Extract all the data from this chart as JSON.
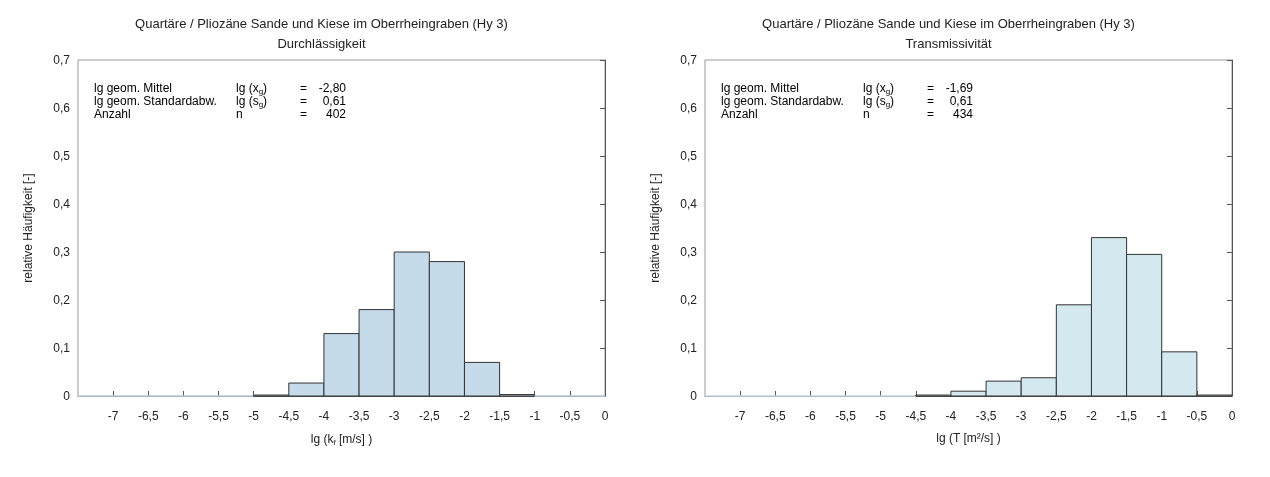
{
  "chart_data": [
    {
      "type": "histogram",
      "title": "Quartäre / Pliozäne Sande und Kiese im Oberrheingraben (Hy 3)",
      "subtitle": "Durchlässigkeit",
      "xlabel": "lg (k$_{f}$ [m/s] )",
      "ylabel": "relative Häufigkeit [-]",
      "color": "#c6dbea",
      "bins": [
        -7.5,
        -7,
        -6.5,
        -6,
        -5.5,
        -5,
        -4.5,
        -4,
        -3.5,
        -3,
        -2.5,
        -2,
        -1.5,
        -1,
        -0.5,
        0
      ],
      "values": [
        0,
        0,
        0,
        0,
        0,
        0.002,
        0.027,
        0.13,
        0.18,
        0.3,
        0.28,
        0.07,
        0.003,
        0,
        0
      ],
      "xlim": [
        -7.5,
        0
      ],
      "xticks": [
        -7,
        {
          "value": -6.5,
          "label": "-6,5"
        },
        -6,
        {
          "value": -5.5,
          "label": "-5,5"
        },
        -5,
        {
          "value": -4.5,
          "label": "-4,5"
        },
        -4,
        {
          "value": -3.5,
          "label": "-3,5"
        },
        -3,
        {
          "value": -2.5,
          "label": "-2,5"
        },
        -2,
        {
          "value": -1.5,
          "label": "-1,5"
        },
        -1,
        {
          "value": -0.5,
          "label": "-0,5"
        },
        0
      ],
      "ylim": [
        0,
        0.7
      ],
      "yticks": [
        0,
        {
          "value": 0.1,
          "label": "0,1"
        },
        {
          "value": 0.2,
          "label": "0,2"
        },
        {
          "value": 0.3,
          "label": "0,3"
        },
        {
          "value": 0.4,
          "label": "0,4"
        },
        {
          "value": 0.5,
          "label": "0,5"
        },
        {
          "value": 0.6,
          "label": "0,6"
        },
        {
          "value": 0.7,
          "label": "0,7"
        }
      ],
      "grid": false,
      "annotations": [
        "lg geom. Mittel",
        "lg (x$_{g}$)",
        "=",
        "-2,80",
        "lg geom. Standardabw.",
        "lg (s$_{g}$)",
        "=",
        "0,61",
        "Anzahl",
        "n",
        "=",
        "402"
      ]
    },
    {
      "type": "histogram",
      "title": "Quartäre / Pliozäne Sande und Kiese im Oberrheingraben (Hy 3)",
      "subtitle": "Transmissivität",
      "xlabel": "lg (T [m²/s] )",
      "ylabel": "relative Häufigkeit [-]",
      "color": "#d4e8ef",
      "bins": [
        -7.5,
        -7,
        -6.5,
        -6,
        -5.5,
        -5,
        -4.5,
        -4,
        -3.5,
        -3,
        -2.5,
        -2,
        -1.5,
        -1,
        -0.5,
        0
      ],
      "values": [
        0,
        0,
        0,
        0,
        0,
        0,
        0.002,
        0.01,
        0.031,
        0.038,
        0.19,
        0.33,
        0.295,
        0.092,
        0.002
      ],
      "xlim": [
        -7.5,
        0
      ],
      "xticks": [
        -7,
        {
          "value": -6.5,
          "label": "-6,5"
        },
        -6,
        {
          "value": -5.5,
          "label": "-5,5"
        },
        -5,
        {
          "value": -4.5,
          "label": "-4,5"
        },
        -4,
        {
          "value": -3.5,
          "label": "-3,5"
        },
        -3,
        {
          "value": -2.5,
          "label": "-2,5"
        },
        -2,
        {
          "value": -1.5,
          "label": "-1,5"
        },
        -1,
        {
          "value": -0.5,
          "label": "-0,5"
        },
        0
      ],
      "ylim": [
        0,
        0.7
      ],
      "yticks": [
        0,
        {
          "value": 0.1,
          "label": "0,1"
        },
        {
          "value": 0.2,
          "label": "0,2"
        },
        {
          "value": 0.3,
          "label": "0,3"
        },
        {
          "value": 0.4,
          "label": "0,4"
        },
        {
          "value": 0.5,
          "label": "0,5"
        },
        {
          "value": 0.6,
          "label": "0,6"
        },
        {
          "value": 0.7,
          "label": "0,7"
        }
      ],
      "grid": false,
      "annotations": [
        "lg geom. Mittel",
        "lg (x$_{g}$)",
        "=",
        "-1,69",
        "lg geom. Standardabw.",
        "lg (s$_{g}$)",
        "=",
        "0,61",
        "Anzahl",
        "n",
        "=",
        "434"
      ]
    }
  ]
}
